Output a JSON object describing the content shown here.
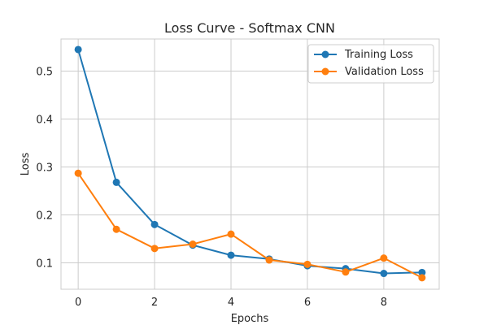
{
  "chart_data": {
    "type": "line",
    "title": "Loss Curve - Softmax CNN",
    "xlabel": "Epochs",
    "ylabel": "Loss",
    "x": [
      0,
      1,
      2,
      3,
      4,
      5,
      6,
      7,
      8,
      9
    ],
    "xlim": [
      -0.45,
      9.45
    ],
    "ylim": [
      0.045,
      0.567
    ],
    "xticks": [
      0,
      2,
      4,
      6,
      8
    ],
    "yticks": [
      0.1,
      0.2,
      0.3,
      0.4,
      0.5
    ],
    "xtick_labels": [
      "0",
      "2",
      "4",
      "6",
      "8"
    ],
    "ytick_labels": [
      "0.1",
      "0.2",
      "0.3",
      "0.4",
      "0.5"
    ],
    "grid": true,
    "legend_position": "top-right",
    "series": [
      {
        "name": "Training Loss",
        "color": "#1f77b4",
        "values": [
          0.545,
          0.268,
          0.18,
          0.137,
          0.116,
          0.108,
          0.094,
          0.088,
          0.078,
          0.08
        ]
      },
      {
        "name": "Validation Loss",
        "color": "#ff7f0e",
        "values": [
          0.287,
          0.17,
          0.13,
          0.139,
          0.16,
          0.106,
          0.097,
          0.081,
          0.11,
          0.069
        ]
      }
    ]
  }
}
